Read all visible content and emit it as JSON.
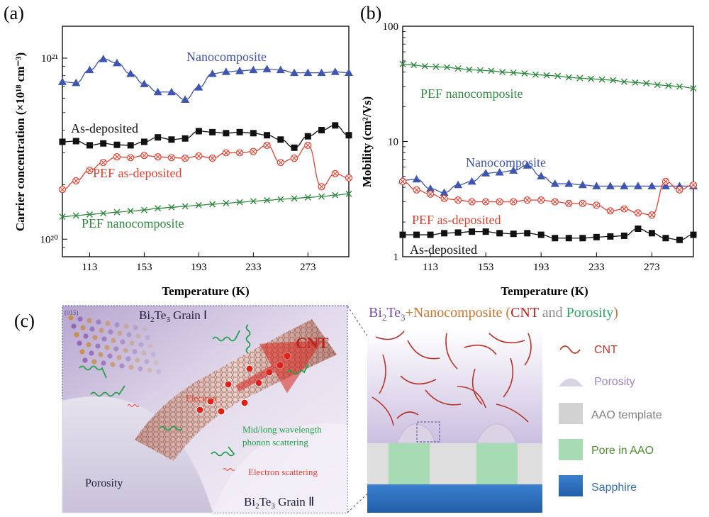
{
  "panel_labels": {
    "a": "(a)",
    "b": "(b)",
    "c": "(c)"
  },
  "colors": {
    "blue": "#3f55b0",
    "black": "#111111",
    "red": "#e8412f",
    "green": "#2e8b3e",
    "cnt": "#c0392b"
  },
  "chart_data": [
    {
      "type": "line",
      "panel": "(a)",
      "xlabel": "Temperature (K)",
      "ylabel": "Carrier concentration (×10¹⁸ cm⁻³)",
      "x_ticks": [
        "113",
        "153",
        "193",
        "233",
        "273"
      ],
      "y_ticks": [
        {
          "value": 100,
          "label": "10²⁰"
        },
        {
          "value": 1000,
          "label": "10²¹"
        }
      ],
      "xlim": [
        93,
        303
      ],
      "ylim": [
        80,
        1500
      ],
      "yscale": "log",
      "series": [
        {
          "name": "Nanocomposite",
          "marker": "triangle",
          "color": "#3f55b0",
          "x": [
            93,
            103,
            113,
            123,
            133,
            143,
            153,
            163,
            173,
            183,
            193,
            203,
            213,
            223,
            233,
            243,
            253,
            263,
            273,
            283,
            293,
            303
          ],
          "y": [
            740,
            730,
            860,
            990,
            940,
            820,
            720,
            650,
            650,
            590,
            690,
            820,
            840,
            850,
            860,
            870,
            860,
            830,
            830,
            830,
            840,
            830
          ]
        },
        {
          "name": "As-deposited",
          "marker": "square",
          "color": "#111111",
          "x": [
            93,
            103,
            113,
            123,
            133,
            143,
            153,
            163,
            173,
            183,
            193,
            203,
            213,
            223,
            233,
            243,
            253,
            263,
            273,
            283,
            293,
            303
          ],
          "y": [
            345,
            348,
            330,
            338,
            332,
            330,
            345,
            365,
            355,
            360,
            395,
            390,
            385,
            390,
            385,
            375,
            355,
            320,
            370,
            400,
            425,
            375
          ]
        },
        {
          "name": "PEF as-deposited",
          "marker": "circle-x",
          "color": "#e8412f",
          "x": [
            93,
            103,
            113,
            123,
            133,
            143,
            153,
            163,
            173,
            183,
            193,
            203,
            213,
            223,
            233,
            243,
            253,
            263,
            273,
            283,
            293,
            303
          ],
          "y": [
            188,
            210,
            240,
            265,
            285,
            282,
            290,
            285,
            282,
            280,
            288,
            280,
            300,
            300,
            305,
            330,
            265,
            280,
            330,
            195,
            230,
            218
          ]
        },
        {
          "name": "PEF nanocomposite",
          "marker": "x",
          "color": "#2e8b3e",
          "x": [
            93,
            103,
            113,
            123,
            133,
            143,
            153,
            163,
            173,
            183,
            193,
            203,
            213,
            223,
            233,
            243,
            253,
            263,
            273,
            283,
            293,
            303
          ],
          "y": [
            133,
            135,
            137,
            139,
            141,
            143,
            145,
            148,
            150,
            152,
            154,
            156,
            158,
            160,
            162,
            164,
            166,
            168,
            170,
            172,
            175,
            178
          ]
        }
      ]
    },
    {
      "type": "line",
      "panel": "(b)",
      "xlabel": "Temperature (K)",
      "ylabel": "Mobility (cm²/Vs)",
      "x_ticks": [
        "113",
        "153",
        "193",
        "233",
        "273"
      ],
      "y_ticks": [
        {
          "value": 1,
          "label": "1"
        },
        {
          "value": 10,
          "label": "10"
        },
        {
          "value": 100,
          "label": "100"
        }
      ],
      "xlim": [
        93,
        303
      ],
      "ylim": [
        1,
        100
      ],
      "yscale": "log",
      "series": [
        {
          "name": "PEF nanocomposite",
          "marker": "x",
          "color": "#2e8b3e",
          "x": [
            93,
            101,
            109,
            117,
            125,
            133,
            141,
            149,
            157,
            165,
            173,
            181,
            189,
            197,
            205,
            213,
            221,
            229,
            237,
            245,
            253,
            261,
            269,
            277,
            285,
            293,
            303
          ],
          "y": [
            47,
            46,
            45,
            44.5,
            44,
            43,
            42,
            41.5,
            41,
            40,
            39.5,
            39,
            38,
            37.5,
            37,
            36,
            35.5,
            35,
            34.5,
            34,
            33,
            32.5,
            32,
            31,
            30.5,
            30,
            29
          ]
        },
        {
          "name": "Nanocomposite",
          "marker": "triangle",
          "color": "#3f55b0",
          "x": [
            93,
            103,
            113,
            123,
            133,
            143,
            153,
            163,
            173,
            183,
            193,
            203,
            213,
            223,
            233,
            243,
            253,
            263,
            273,
            283,
            293,
            303
          ],
          "y": [
            4.6,
            4.7,
            3.9,
            3.6,
            4.2,
            4.5,
            5.3,
            5.4,
            5.6,
            6.2,
            5.0,
            4.3,
            4.3,
            4.2,
            4.1,
            4.1,
            4.1,
            4.1,
            4.1,
            4.1,
            4.1,
            4.1
          ]
        },
        {
          "name": "PEF as-deposited",
          "marker": "circle-x",
          "color": "#e8412f",
          "x": [
            93,
            103,
            113,
            123,
            133,
            143,
            153,
            163,
            173,
            183,
            193,
            203,
            213,
            223,
            233,
            243,
            253,
            263,
            273,
            283,
            293,
            303
          ],
          "y": [
            4.5,
            3.8,
            3.5,
            3.2,
            3.1,
            3.0,
            3.0,
            3.0,
            3.0,
            3.1,
            3.1,
            3.0,
            2.9,
            2.9,
            2.8,
            2.5,
            2.6,
            2.4,
            2.3,
            4.5,
            3.8,
            4.2
          ]
        },
        {
          "name": "As-deposited",
          "marker": "square",
          "color": "#111111",
          "x": [
            93,
            103,
            113,
            123,
            133,
            143,
            153,
            163,
            173,
            183,
            193,
            203,
            213,
            223,
            233,
            243,
            253,
            263,
            273,
            283,
            293,
            303
          ],
          "y": [
            1.55,
            1.55,
            1.55,
            1.6,
            1.62,
            1.65,
            1.65,
            1.6,
            1.58,
            1.6,
            1.55,
            1.45,
            1.45,
            1.45,
            1.48,
            1.5,
            1.52,
            1.75,
            1.6,
            1.45,
            1.4,
            1.55
          ]
        }
      ]
    }
  ],
  "series_labels": {
    "a_nano": "Nanocomposite",
    "a_asdep": "As-deposited",
    "a_pef_asdep": "PEF as-deposited",
    "a_pef_nano": "PEF nanocomposite",
    "b_pef_nano": "PEF nanocomposite",
    "b_nano": "Nanocomposite",
    "b_pef_asdep": "PEF as-deposited",
    "b_asdep": "As-deposited"
  },
  "illustration": {
    "plane_label": "(015)",
    "grain1_prefix": "Bi",
    "grain1_sub1": "2",
    "grain1_mid": "Te",
    "grain1_sub2": "3",
    "grain1_suffix": " Grain Ⅰ",
    "grain2_prefix": "Bi",
    "grain2_sub1": "2",
    "grain2_mid": "Te",
    "grain2_sub2": "3",
    "grain2_suffix": " Grain Ⅱ",
    "cnt_label": "CNT",
    "electron_label": "Electron",
    "porosity_label": "Porosity",
    "phonon_line1": "Mid/long wavelength",
    "phonon_line2": "phonon scattering",
    "electron_scatter_label": "Electron scattering"
  },
  "schematic": {
    "title_bi": "Bi",
    "title_s2": "2",
    "title_te": "Te",
    "title_s3": "3",
    "title_plus": "+Nanocomposite (",
    "title_cnt": "CNT",
    "title_and": " and ",
    "title_por": "Porosity",
    "title_close": ")",
    "legend": [
      {
        "label": "CNT",
        "color": "#c0392b"
      },
      {
        "label": "Porosity",
        "color": "#9b84c0"
      },
      {
        "label": "AAO template",
        "color": "#7f7f7f"
      },
      {
        "label": "Pore in AAO",
        "color": "#4f8f2f"
      },
      {
        "label": "Sapphire",
        "color": "#2f6fb5"
      }
    ]
  }
}
